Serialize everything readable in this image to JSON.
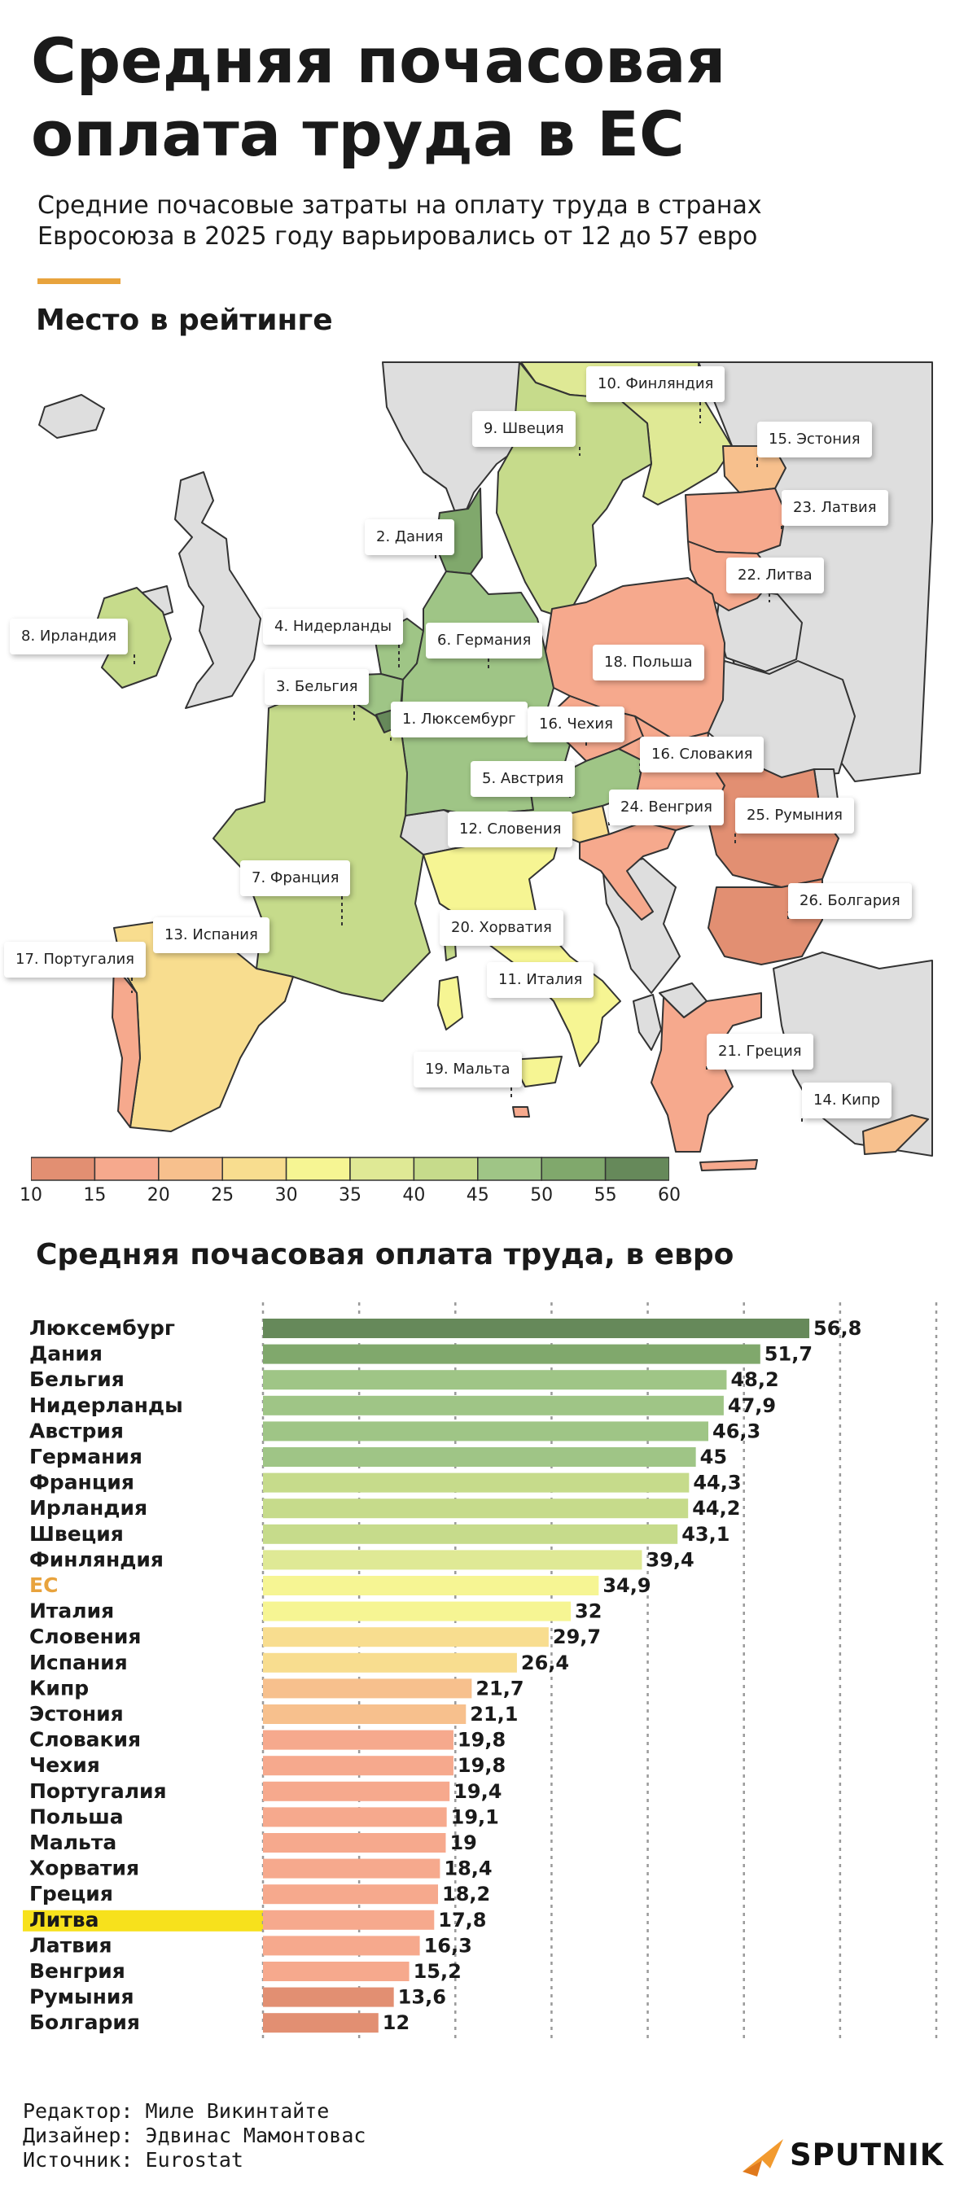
{
  "title": "Средняя почасовая оплата труда в ЕС",
  "subtitle": "Средние почасовые затраты на оплату труда в странах Евросоюза в 2025 году варьировались от 12 до 57 евро",
  "colors": {
    "accent": "#e8a33d",
    "eu_label": "#e8a33d",
    "highlight": "#f7e11c",
    "scale": [
      "#e28f72",
      "#f6a98d",
      "#f7c08d",
      "#f8dd8f",
      "#f6f593",
      "#dfe995",
      "#c6db8b",
      "#9fc586",
      "#80a86c",
      "#66895a"
    ]
  },
  "map": {
    "title": "Место в рейтинге",
    "labels": [
      {
        "text": "10. Финляндия",
        "rank": 10,
        "value": 39.4
      },
      {
        "text": "9. Швеция",
        "rank": 9,
        "value": 43.1
      },
      {
        "text": "15. Эстония",
        "rank": 15,
        "value": 21.1
      },
      {
        "text": "23. Латвия",
        "rank": 23,
        "value": 16.3
      },
      {
        "text": "2. Дания",
        "rank": 2,
        "value": 51.7
      },
      {
        "text": "22. Литва",
        "rank": 22,
        "value": 17.8
      },
      {
        "text": "8. Ирландия",
        "rank": 8,
        "value": 44.2
      },
      {
        "text": "4. Нидерланды",
        "rank": 4,
        "value": 47.9
      },
      {
        "text": "6. Германия",
        "rank": 6,
        "value": 45
      },
      {
        "text": "18. Польша",
        "rank": 18,
        "value": 19.1
      },
      {
        "text": "3. Бельгия",
        "rank": 3,
        "value": 48.2
      },
      {
        "text": "1. Люксембург",
        "rank": 1,
        "value": 56.8
      },
      {
        "text": "16. Чехия",
        "rank": 16,
        "value": 19.8
      },
      {
        "text": "16. Словакия",
        "rank": 16,
        "value": 19.8
      },
      {
        "text": "5. Австрия",
        "rank": 5,
        "value": 46.3
      },
      {
        "text": "24. Венгрия",
        "rank": 24,
        "value": 15.2
      },
      {
        "text": "25. Румыния",
        "rank": 25,
        "value": 13.6
      },
      {
        "text": "12. Словения",
        "rank": 12,
        "value": 29.7
      },
      {
        "text": "7. Франция",
        "rank": 7,
        "value": 44.3
      },
      {
        "text": "26. Болгария",
        "rank": 26,
        "value": 12
      },
      {
        "text": "20. Хорватия",
        "rank": 20,
        "value": 18.4
      },
      {
        "text": "13. Испания",
        "rank": 13,
        "value": 26.4
      },
      {
        "text": "17. Португалия",
        "rank": 17,
        "value": 19.4
      },
      {
        "text": "11. Италия",
        "rank": 11,
        "value": 32
      },
      {
        "text": "21. Греция",
        "rank": 21,
        "value": 18.2
      },
      {
        "text": "19. Мальта",
        "rank": 19,
        "value": 19
      },
      {
        "text": "14. Кипр",
        "rank": 14,
        "value": 21.7
      }
    ],
    "legend": {
      "min": 10,
      "max": 60,
      "step": 5,
      "ticks": [
        "10",
        "15",
        "20",
        "25",
        "30",
        "35",
        "40",
        "45",
        "50",
        "55",
        "60"
      ]
    }
  },
  "chart_data": {
    "type": "bar",
    "orientation": "horizontal",
    "title": "Средняя почасовая оплата труда, в евро",
    "categories": [
      "Люксембург",
      "Дания",
      "Бельгия",
      "Нидерланды",
      "Австрия",
      "Германия",
      "Франция",
      "Ирландия",
      "Швеция",
      "Финляндия",
      "ЕС",
      "Италия",
      "Словения",
      "Испания",
      "Кипр",
      "Эстония",
      "Словакия",
      "Чехия",
      "Португалия",
      "Польша",
      "Мальта",
      "Хорватия",
      "Греция",
      "Литва",
      "Латвия",
      "Венгрия",
      "Румыния",
      "Болгария"
    ],
    "values": [
      56.8,
      51.7,
      48.2,
      47.9,
      46.3,
      45,
      44.3,
      44.2,
      43.1,
      39.4,
      34.9,
      32,
      29.7,
      26.4,
      21.7,
      21.1,
      19.8,
      19.8,
      19.4,
      19.1,
      19,
      18.4,
      18.2,
      17.8,
      16.3,
      15.2,
      13.6,
      12
    ],
    "value_labels": [
      "56,8",
      "51,7",
      "48,2",
      "47,9",
      "46,3",
      "45",
      "44,3",
      "44,2",
      "43,1",
      "39,4",
      "34,9",
      "32",
      "29,7",
      "26,4",
      "21,7",
      "21,1",
      "19,8",
      "19,8",
      "19,4",
      "19,1",
      "19",
      "18,4",
      "18,2",
      "17,8",
      "16,3",
      "15,2",
      "13,6",
      "12"
    ],
    "xlim": [
      0,
      70
    ],
    "xticks": [
      "0",
      "10",
      "20",
      "30",
      "40",
      "50",
      "60",
      "70"
    ],
    "grid": true,
    "highlight_category": "Литва",
    "eu_category": "ЕС"
  },
  "footer": {
    "editor": "Редактор: Миле Викинтайте",
    "designer": "Дизайнер: Эдвинас Мамонтовас",
    "source": "Источник: Eurostat",
    "logo": "SPUTNIK"
  }
}
